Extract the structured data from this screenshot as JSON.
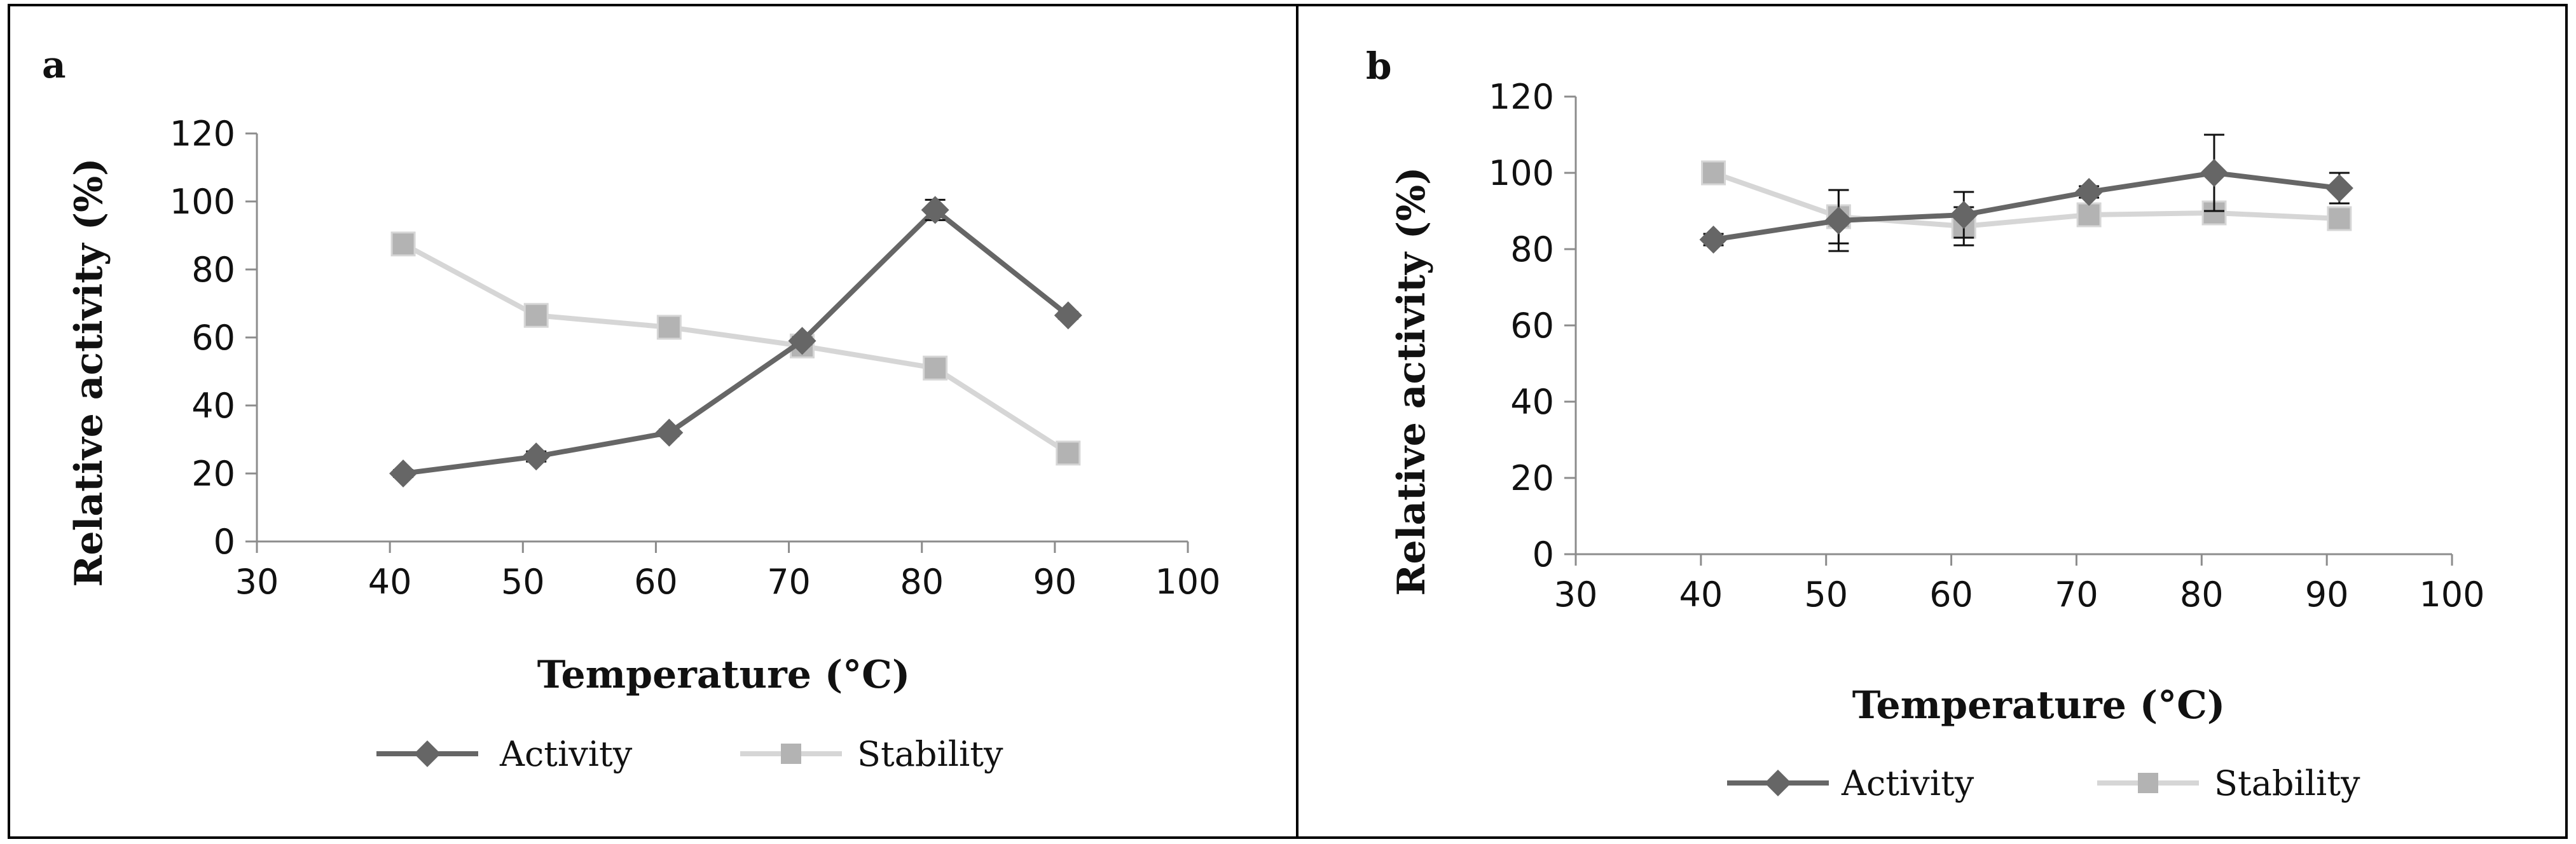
{
  "chart_data": [
    {
      "panel_label": "a",
      "type": "line",
      "xlabel": "Temperature (°C)",
      "ylabel": "Relative activity (%)",
      "xlim": [
        30,
        100
      ],
      "ylim": [
        0,
        120
      ],
      "x_ticks": [
        "30",
        "40",
        "50",
        "60",
        "70",
        "80",
        "90",
        "100"
      ],
      "y_ticks": [
        "0",
        "20",
        "40",
        "60",
        "80",
        "100",
        "120"
      ],
      "grid": false,
      "legend_position": "bottom",
      "series": [
        {
          "name": "Activity",
          "marker": "diamond",
          "color": "#666666",
          "x": [
            41,
            51,
            61,
            71,
            81,
            91
          ],
          "values": [
            20,
            25,
            32,
            59,
            97.5,
            66.5
          ],
          "errors": [
            1,
            1.5,
            1,
            1,
            3,
            1
          ]
        },
        {
          "name": "Stability",
          "marker": "square",
          "color": "#d6d6d6",
          "x": [
            41,
            51,
            61,
            71,
            81,
            91
          ],
          "values": [
            87.5,
            66.5,
            63,
            57.5,
            51,
            26
          ],
          "errors": [
            1,
            2,
            1,
            1,
            3,
            1
          ]
        }
      ]
    },
    {
      "panel_label": "b",
      "type": "line",
      "xlabel": "Temperature (°C)",
      "ylabel": "Relative activity (%)",
      "xlim": [
        30,
        100
      ],
      "ylim": [
        0,
        120
      ],
      "x_ticks": [
        "30",
        "40",
        "50",
        "60",
        "70",
        "80",
        "90",
        "100"
      ],
      "y_ticks": [
        "0",
        "20",
        "40",
        "60",
        "80",
        "100",
        "120"
      ],
      "grid": false,
      "legend_position": "bottom",
      "series": [
        {
          "name": "Activity",
          "marker": "diamond",
          "color": "#666666",
          "x": [
            41,
            51,
            61,
            71,
            81,
            91
          ],
          "values": [
            82.5,
            87.5,
            89,
            95,
            100,
            96
          ],
          "errors": [
            1.5,
            8,
            6,
            1.5,
            10,
            4
          ]
        },
        {
          "name": "Stability",
          "marker": "square",
          "color": "#d6d6d6",
          "x": [
            41,
            51,
            61,
            71,
            81,
            91
          ],
          "values": [
            100,
            88.5,
            86,
            89,
            89.5,
            88
          ],
          "errors": [
            1,
            7,
            5,
            1,
            2,
            3
          ]
        }
      ]
    }
  ]
}
